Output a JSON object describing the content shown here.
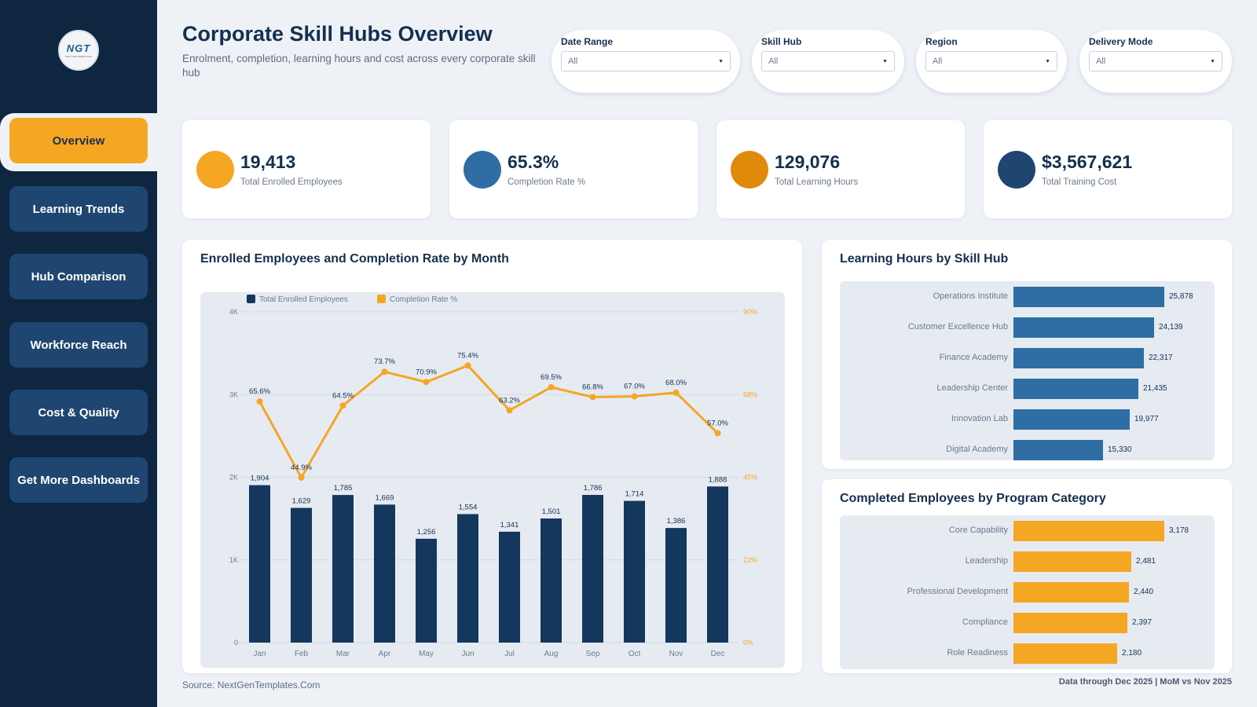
{
  "sidebar": {
    "logo_text": "NGT",
    "logo_sub": "NEXT GEN TEMPLATES",
    "items": [
      {
        "label": "Overview",
        "active": true
      },
      {
        "label": "Learning Trends"
      },
      {
        "label": "Hub Comparison"
      },
      {
        "label": "Workforce Reach"
      },
      {
        "label": "Cost & Quality"
      },
      {
        "label": "Get More Dashboards"
      }
    ]
  },
  "header": {
    "title": "Corporate Skill Hubs Overview",
    "subtitle": "Enrolment, completion, learning hours and cost across every corporate skill hub"
  },
  "filters": [
    {
      "label": "Date Range",
      "value": "All"
    },
    {
      "label": "Skill Hub",
      "value": "All"
    },
    {
      "label": "Region",
      "value": "All"
    },
    {
      "label": "Delivery Mode",
      "value": "All"
    }
  ],
  "kpis": [
    {
      "value": "19,413",
      "label": "Total Enrolled Employees",
      "color": "#f5a623"
    },
    {
      "value": "65.3%",
      "label": "Completion Rate %",
      "color": "#2f6ea5"
    },
    {
      "value": "129,076",
      "label": "Total Learning Hours",
      "color": "#e08a0b"
    },
    {
      "value": "$3,567,621",
      "label": "Total Training Cost",
      "color": "#1e4670"
    }
  ],
  "chart_data": [
    {
      "type": "bar",
      "title": "Enrolled Employees and Completion Rate by Month",
      "categories": [
        "Jan",
        "Feb",
        "Mar",
        "Apr",
        "May",
        "Jun",
        "Jul",
        "Aug",
        "Sep",
        "Oct",
        "Nov",
        "Dec"
      ],
      "series": [
        {
          "name": "Total Enrolled Employees",
          "type": "bar",
          "axis": "left",
          "color": "#14375e",
          "values": [
            1904,
            1629,
            1785,
            1669,
            1256,
            1554,
            1341,
            1501,
            1786,
            1714,
            1386,
            1888
          ],
          "labels": [
            "1,904",
            "1,629",
            "1,785",
            "1,669",
            "1,256",
            "1,554",
            "1,341",
            "1,501",
            "1,786",
            "1,714",
            "1,386",
            "1,888"
          ]
        },
        {
          "name": "Completion Rate %",
          "type": "line",
          "axis": "right",
          "color": "#f5a623",
          "values": [
            65.6,
            44.9,
            64.5,
            73.7,
            70.9,
            75.4,
            63.2,
            69.5,
            66.8,
            67.0,
            68.0,
            57.0
          ],
          "labels": [
            "65.6%",
            "44.9%",
            "64.5%",
            "73.7%",
            "70.9%",
            "75.4%",
            "63.2%",
            "69.5%",
            "66.8%",
            "67.0%",
            "68.0%",
            "57.0%"
          ]
        }
      ],
      "ylim_left": [
        0,
        4000
      ],
      "yticks_left": [
        "0",
        "1K",
        "2K",
        "3K",
        "4K"
      ],
      "ylim_right": [
        0,
        90
      ],
      "yticks_right": [
        "0%",
        "22%",
        "45%",
        "68%",
        "90%"
      ],
      "legend": "top-left",
      "grid": true
    },
    {
      "type": "bar",
      "orientation": "horizontal",
      "title": "Learning Hours by Skill Hub",
      "categories": [
        "Operations Institute",
        "Customer Excellence Hub",
        "Finance Academy",
        "Leadership Center",
        "Innovation Lab",
        "Digital Academy"
      ],
      "values": [
        25878,
        24139,
        22317,
        21435,
        19977,
        15330
      ],
      "labels": [
        "25,878",
        "24,139",
        "22,317",
        "21,435",
        "19,977",
        "15,330"
      ],
      "color": "#2f6ea5",
      "max": 25878
    },
    {
      "type": "bar",
      "orientation": "horizontal",
      "title": "Completed Employees by Program Category",
      "categories": [
        "Core Capability",
        "Leadership",
        "Professional Development",
        "Compliance",
        "Role Readiness"
      ],
      "values": [
        3178,
        2481,
        2440,
        2397,
        2180
      ],
      "labels": [
        "3,178",
        "2,481",
        "2,440",
        "2,397",
        "2,180"
      ],
      "color": "#f5a623",
      "max": 3178
    }
  ],
  "footer": {
    "source": "Source: NextGenTemplates.Com",
    "note": "Data through Dec 2025 | MoM vs Nov 2025"
  }
}
